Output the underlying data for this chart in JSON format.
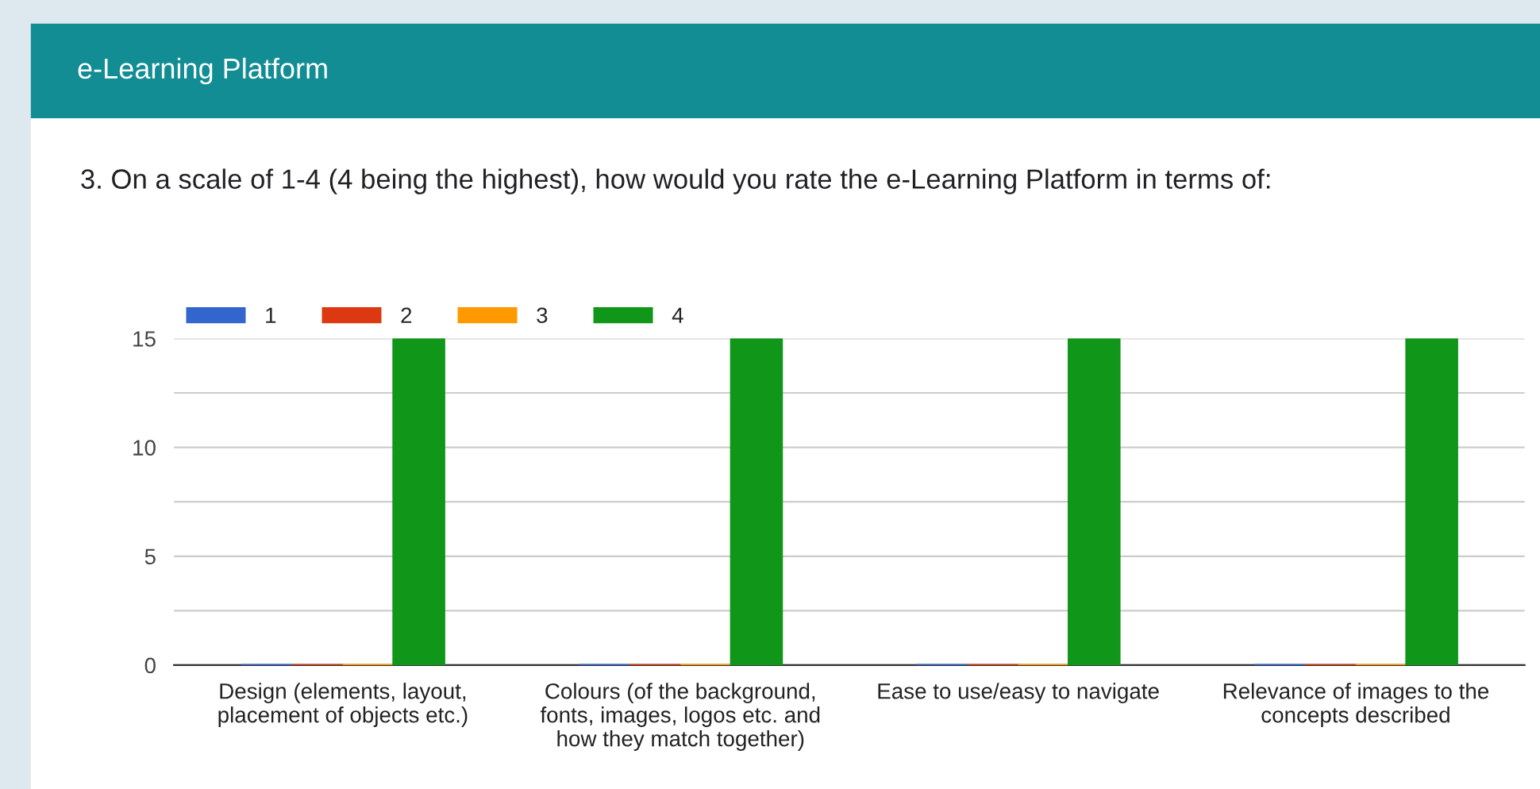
{
  "chart_data": {
    "type": "bar",
    "title": "e-Learning Platform",
    "subtitle": "3. On a scale of 1-4 (4 being the highest), how would you rate the e-Learning Platform in terms of:",
    "categories": [
      "Design (elements, layout, placement of objects etc.)",
      "Colours (of the background, fonts, images, logos etc. and how they match together)",
      "Ease to use/easy to navigate",
      "Relevance of images to the concepts described"
    ],
    "series": [
      {
        "name": "1",
        "color": "#3366cc",
        "values": [
          0,
          0,
          0,
          0
        ]
      },
      {
        "name": "2",
        "color": "#dc3912",
        "values": [
          0,
          0,
          0,
          0
        ]
      },
      {
        "name": "3",
        "color": "#ff9900",
        "values": [
          0,
          0,
          0,
          0
        ]
      },
      {
        "name": "4",
        "color": "#109618",
        "values": [
          15,
          15,
          15,
          15
        ]
      }
    ],
    "ylim": [
      0,
      15
    ],
    "yticks": [
      0,
      {
        "value": 2.5,
        "label": null
      },
      5,
      {
        "value": 7.5,
        "label": null
      },
      10,
      {
        "value": 12.5,
        "label": null
      },
      15
    ],
    "grid": "y",
    "legend": "top left"
  }
}
